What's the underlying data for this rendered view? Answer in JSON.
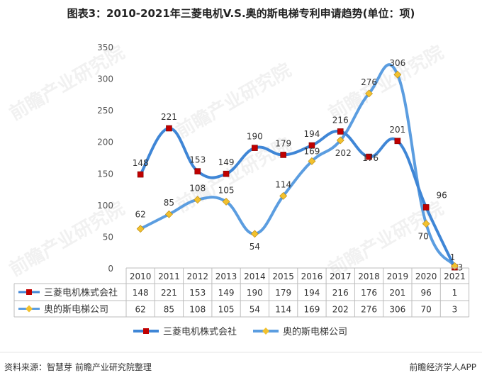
{
  "title": "图表3：2010-2021年三菱电机V.S.奥的斯电梯专利申请趋势(单位：项)",
  "chart_data": {
    "type": "line",
    "categories": [
      "2010",
      "2011",
      "2012",
      "2013",
      "2014",
      "2015",
      "2016",
      "2017",
      "2018",
      "2019",
      "2020",
      "2021"
    ],
    "series": [
      {
        "name": "三菱电机株式会社",
        "values": [
          148,
          221,
          153,
          149,
          190,
          179,
          194,
          216,
          176,
          201,
          96,
          1
        ],
        "color": "#3f86d6",
        "marker": "square",
        "marker_color": "#c00000"
      },
      {
        "name": "奥的斯电梯公司",
        "values": [
          62,
          85,
          108,
          105,
          54,
          114,
          169,
          202,
          276,
          306,
          70,
          3
        ],
        "color": "#5b9de0",
        "marker": "diamond",
        "marker_color": "#f2c12e"
      }
    ],
    "yticks": [
      0,
      50,
      100,
      150,
      200,
      250,
      300,
      350
    ],
    "ylim": [
      0,
      350
    ],
    "grid": false,
    "legend": "bottom",
    "data_table": true
  },
  "watermark": "前瞻产业研究院",
  "footer": {
    "source": "资料来源：智慧芽 前瞻产业研究院整理",
    "brand": "前瞻经济学人APP"
  }
}
